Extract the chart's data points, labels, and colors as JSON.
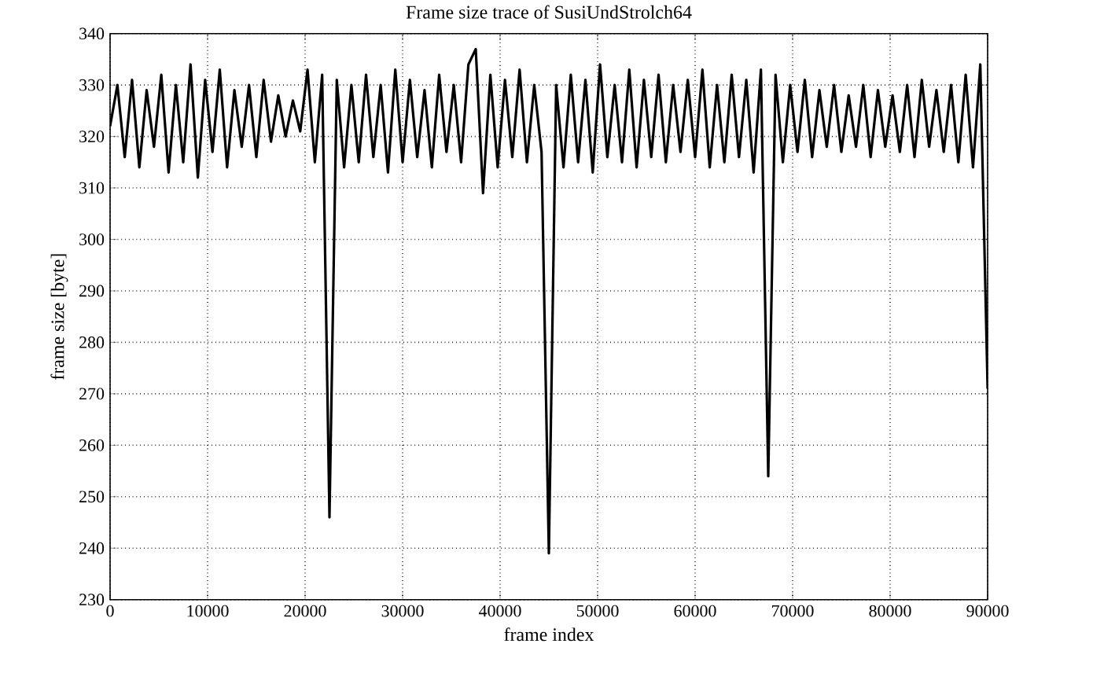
{
  "chart_data": {
    "type": "line",
    "title": "Frame size trace of SusiUndStrolch64",
    "xlabel": "frame index",
    "ylabel": "frame size [byte]",
    "x": [
      0,
      750,
      1500,
      2250,
      3000,
      3750,
      4500,
      5250,
      6000,
      6750,
      7500,
      8250,
      9000,
      9750,
      10500,
      11250,
      12000,
      12750,
      13500,
      14250,
      15000,
      15750,
      16500,
      17250,
      18000,
      18750,
      19500,
      20250,
      21000,
      21750,
      22500,
      23250,
      24000,
      24750,
      25500,
      26250,
      27000,
      27750,
      28500,
      29250,
      30000,
      30750,
      31500,
      32250,
      33000,
      33750,
      34500,
      35250,
      36000,
      36750,
      37500,
      38250,
      39000,
      39750,
      40500,
      41250,
      42000,
      42750,
      43500,
      44250,
      45000,
      45750,
      46500,
      47250,
      48000,
      48750,
      49500,
      50250,
      51000,
      51750,
      52500,
      53250,
      54000,
      54750,
      55500,
      56250,
      57000,
      57750,
      58500,
      59250,
      60000,
      60750,
      61500,
      62250,
      63000,
      63750,
      64500,
      65250,
      66000,
      66750,
      67500,
      68250,
      69000,
      69750,
      70500,
      71250,
      72000,
      72750,
      73500,
      74250,
      75000,
      75750,
      76500,
      77250,
      78000,
      78750,
      79500,
      80250,
      81000,
      81750,
      82500,
      83250,
      84000,
      84750,
      85500,
      86250,
      87000,
      87750,
      88500,
      89250,
      90000
    ],
    "series": [
      {
        "color": "#000000",
        "values": [
          322,
          330,
          316,
          331,
          314,
          329,
          318,
          332,
          313,
          330,
          315,
          334,
          312,
          331,
          317,
          333,
          314,
          329,
          318,
          330,
          316,
          331,
          319,
          328,
          320,
          327,
          321,
          333,
          315,
          332,
          246,
          331,
          314,
          330,
          315,
          332,
          316,
          330,
          313,
          333,
          315,
          331,
          316,
          329,
          314,
          332,
          317,
          330,
          315,
          334,
          337,
          309,
          332,
          314,
          331,
          316,
          333,
          315,
          330,
          317,
          239,
          330,
          314,
          332,
          315,
          331,
          313,
          334,
          316,
          330,
          315,
          333,
          314,
          331,
          316,
          332,
          315,
          330,
          317,
          331,
          316,
          333,
          314,
          330,
          315,
          332,
          316,
          331,
          313,
          333,
          254,
          332,
          315,
          330,
          317,
          331,
          316,
          329,
          318,
          330,
          317,
          328,
          318,
          330,
          316,
          329,
          318,
          328,
          317,
          330,
          316,
          331,
          318,
          329,
          317,
          330,
          315,
          332,
          314,
          334,
          271
        ]
      }
    ],
    "xlim": [
      0,
      90000
    ],
    "ylim": [
      230,
      340
    ],
    "xticks": [
      0,
      10000,
      20000,
      30000,
      40000,
      50000,
      60000,
      70000,
      80000,
      90000
    ],
    "yticks": [
      230,
      240,
      250,
      260,
      270,
      280,
      290,
      300,
      310,
      320,
      330,
      340
    ],
    "grid": true,
    "marker": "none",
    "line_style": "solid"
  }
}
